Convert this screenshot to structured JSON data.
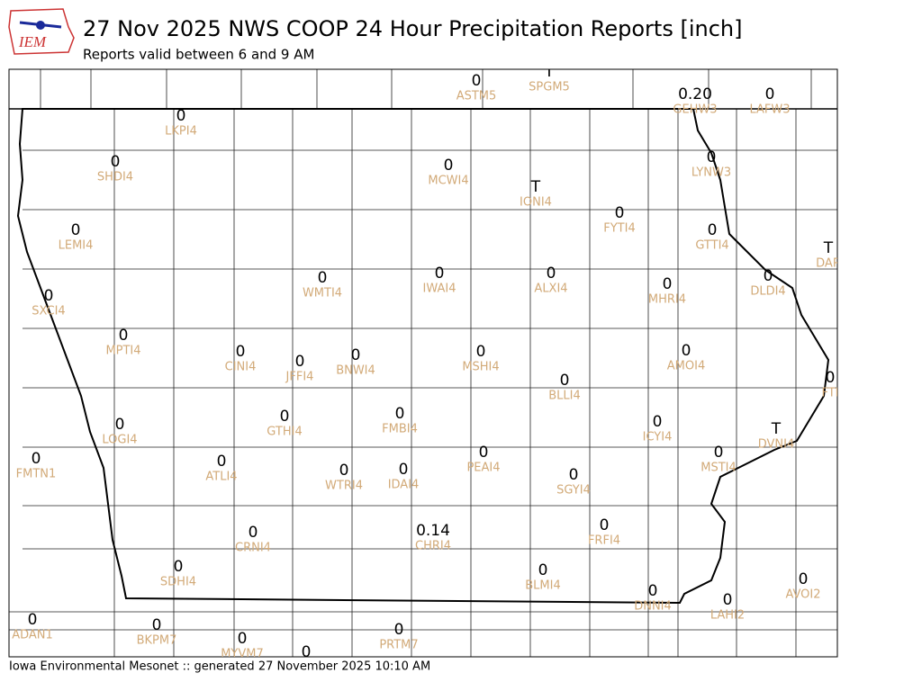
{
  "header": {
    "title": "27 Nov 2025 NWS COOP 24 Hour Precipitation Reports [inch]",
    "subtitle": "Reports valid between 6 and 9 AM",
    "logo": "IEM"
  },
  "stations": [
    {
      "value": "0",
      "id": "ASTM5"
    },
    {
      "value": "T",
      "id": "SPGM5"
    },
    {
      "value": "0.20",
      "id": "GEHW3"
    },
    {
      "value": "0",
      "id": "LAFW3"
    },
    {
      "value": "0",
      "id": "LKPI4"
    },
    {
      "value": "0",
      "id": "SHDI4"
    },
    {
      "value": "0",
      "id": "MCWI4"
    },
    {
      "value": "T",
      "id": "IONI4"
    },
    {
      "value": "0",
      "id": "FYTI4"
    },
    {
      "value": "0",
      "id": "LYNW3"
    },
    {
      "value": "0",
      "id": "GTTI4"
    },
    {
      "value": "T",
      "id": "DAR"
    },
    {
      "value": "0",
      "id": "LEMI4"
    },
    {
      "value": "0",
      "id": "SXCI4"
    },
    {
      "value": "0",
      "id": "WMTI4"
    },
    {
      "value": "0",
      "id": "IWAI4"
    },
    {
      "value": "0",
      "id": "ALXI4"
    },
    {
      "value": "0",
      "id": "MHRI4"
    },
    {
      "value": "0",
      "id": "DLDI4"
    },
    {
      "value": "0",
      "id": "MPTI4"
    },
    {
      "value": "0",
      "id": "CINI4"
    },
    {
      "value": "0",
      "id": "JFFI4"
    },
    {
      "value": "0",
      "id": "BNWI4"
    },
    {
      "value": "0",
      "id": "MSHI4"
    },
    {
      "value": "0",
      "id": "AMOI4"
    },
    {
      "value": "0",
      "id": "BLLI4"
    },
    {
      "value": "0",
      "id": "FTI"
    },
    {
      "value": "0",
      "id": "LOGI4"
    },
    {
      "value": "0",
      "id": "GTHI4"
    },
    {
      "value": "0",
      "id": "FMBI4"
    },
    {
      "value": "0",
      "id": "ICYI4"
    },
    {
      "value": "T",
      "id": "DVNI4"
    },
    {
      "value": "0",
      "id": "FMTN1"
    },
    {
      "value": "0",
      "id": "ATLI4"
    },
    {
      "value": "0",
      "id": "PEAI4"
    },
    {
      "value": "0",
      "id": "MSTI4"
    },
    {
      "value": "0",
      "id": "WTRI4"
    },
    {
      "value": "0",
      "id": "IDAI4"
    },
    {
      "value": "0",
      "id": "SGYI4"
    },
    {
      "value": "0.14",
      "id": "CHRI4"
    },
    {
      "value": "0",
      "id": "CRNI4"
    },
    {
      "value": "0",
      "id": "FRFI4"
    },
    {
      "value": "0",
      "id": "SDHI4"
    },
    {
      "value": "0",
      "id": "BLMI4"
    },
    {
      "value": "0",
      "id": "AVOI2"
    },
    {
      "value": "0",
      "id": "DNNI4"
    },
    {
      "value": "0",
      "id": "LAHI2"
    },
    {
      "value": "0",
      "id": "ADAN1"
    },
    {
      "value": "0",
      "id": "BKPM7"
    },
    {
      "value": "0",
      "id": "MYVM7"
    },
    {
      "value": "0",
      "id": "PRTM7"
    },
    {
      "value": "0"
    }
  ],
  "footer": "Iowa Environmental Mesonet :: generated 27 November 2025 10:10 AM"
}
